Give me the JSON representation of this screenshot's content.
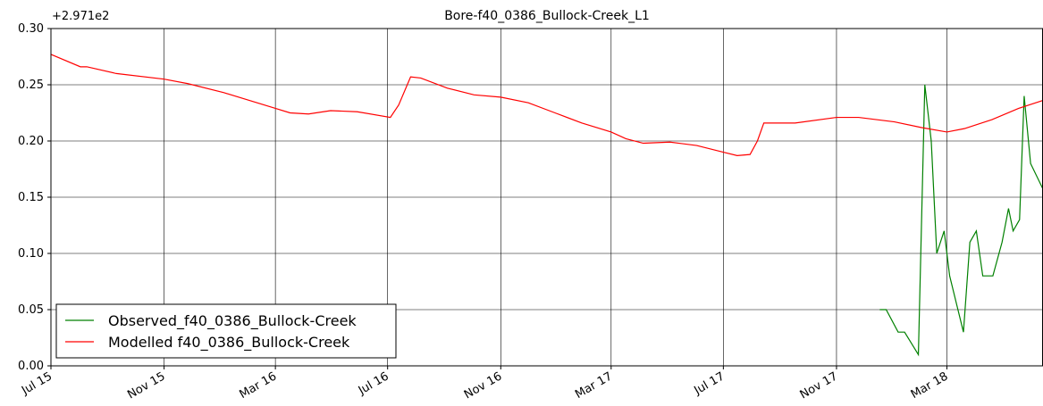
{
  "chart_data": {
    "type": "line",
    "title": "Bore-f40_0386_Bullock-Creek_L1",
    "y_offset_label": "+2.971e2",
    "xlim": [
      "2015-07-01",
      "2018-06-13"
    ],
    "xticks": [
      {
        "value": "2015-07-01",
        "label": "Jul 15"
      },
      {
        "value": "2015-11-01",
        "label": "Nov 15"
      },
      {
        "value": "2016-03-01",
        "label": "Mar 16"
      },
      {
        "value": "2016-07-01",
        "label": "Jul 16"
      },
      {
        "value": "2016-11-01",
        "label": "Nov 16"
      },
      {
        "value": "2017-03-01",
        "label": "Mar 17"
      },
      {
        "value": "2017-07-01",
        "label": "Jul 17"
      },
      {
        "value": "2017-11-01",
        "label": "Nov 17"
      },
      {
        "value": "2018-03-01",
        "label": "Mar 18"
      }
    ],
    "ylim": [
      0,
      0.3
    ],
    "yticks": [
      {
        "value": 0,
        "label": "0.00"
      },
      {
        "value": 0.05,
        "label": "0.05"
      },
      {
        "value": 0.1,
        "label": "0.10"
      },
      {
        "value": 0.15,
        "label": "0.15"
      },
      {
        "value": 0.2,
        "label": "0.20"
      },
      {
        "value": 0.25,
        "label": "0.25"
      },
      {
        "value": 0.3,
        "label": "0.30"
      }
    ],
    "grid": true,
    "legend": "lower left",
    "series": [
      {
        "name": "Observed_f40_0386_Bullock-Creek",
        "color": "#008000",
        "x": [
          "2017-12-18",
          "2017-12-25",
          "2018-01-07",
          "2018-01-14",
          "2018-01-29",
          "2018-02-05",
          "2018-02-12",
          "2018-02-18",
          "2018-02-26",
          "2018-03-04",
          "2018-03-13",
          "2018-03-19",
          "2018-03-26",
          "2018-04-02",
          "2018-04-09",
          "2018-04-20",
          "2018-04-30",
          "2018-05-07",
          "2018-05-12",
          "2018-05-19",
          "2018-05-24",
          "2018-05-31",
          "2018-06-13"
        ],
        "values": [
          0.05,
          0.05,
          0.03,
          0.03,
          0.01,
          0.25,
          0.2,
          0.1,
          0.12,
          0.08,
          0.05,
          0.03,
          0.11,
          0.12,
          0.08,
          0.08,
          0.11,
          0.14,
          0.12,
          0.13,
          0.24,
          0.18,
          0.158
        ]
      },
      {
        "name": "Modelled f40_0386_Bullock-Creek",
        "color": "#ff0000",
        "x": [
          "2015-07-01",
          "2015-08-02",
          "2015-08-09",
          "2015-09-10",
          "2015-11-01",
          "2015-11-27",
          "2016-01-05",
          "2016-03-01",
          "2016-03-17",
          "2016-04-06",
          "2016-04-30",
          "2016-05-29",
          "2016-07-04",
          "2016-07-13",
          "2016-07-26",
          "2016-08-06",
          "2016-09-04",
          "2016-10-03",
          "2016-11-01",
          "2016-12-01",
          "2016-12-30",
          "2017-01-28",
          "2017-03-01",
          "2017-03-17",
          "2017-04-05",
          "2017-05-04",
          "2017-06-02",
          "2017-07-01",
          "2017-07-16",
          "2017-07-30",
          "2017-08-07",
          "2017-08-14",
          "2017-08-28",
          "2017-09-17",
          "2017-11-01",
          "2017-11-25",
          "2018-01-03",
          "2018-02-01",
          "2018-03-01",
          "2018-03-20",
          "2018-04-19",
          "2018-05-18",
          "2018-06-13"
        ],
        "values": [
          0.277,
          0.266,
          0.266,
          0.26,
          0.255,
          0.251,
          0.243,
          0.229,
          0.225,
          0.224,
          0.227,
          0.226,
          0.221,
          0.232,
          0.257,
          0.256,
          0.247,
          0.241,
          0.239,
          0.234,
          0.225,
          0.216,
          0.208,
          0.202,
          0.198,
          0.199,
          0.196,
          0.19,
          0.187,
          0.188,
          0.2,
          0.216,
          0.216,
          0.216,
          0.221,
          0.221,
          0.217,
          0.212,
          0.208,
          0.211,
          0.219,
          0.229,
          0.236
        ]
      }
    ]
  }
}
